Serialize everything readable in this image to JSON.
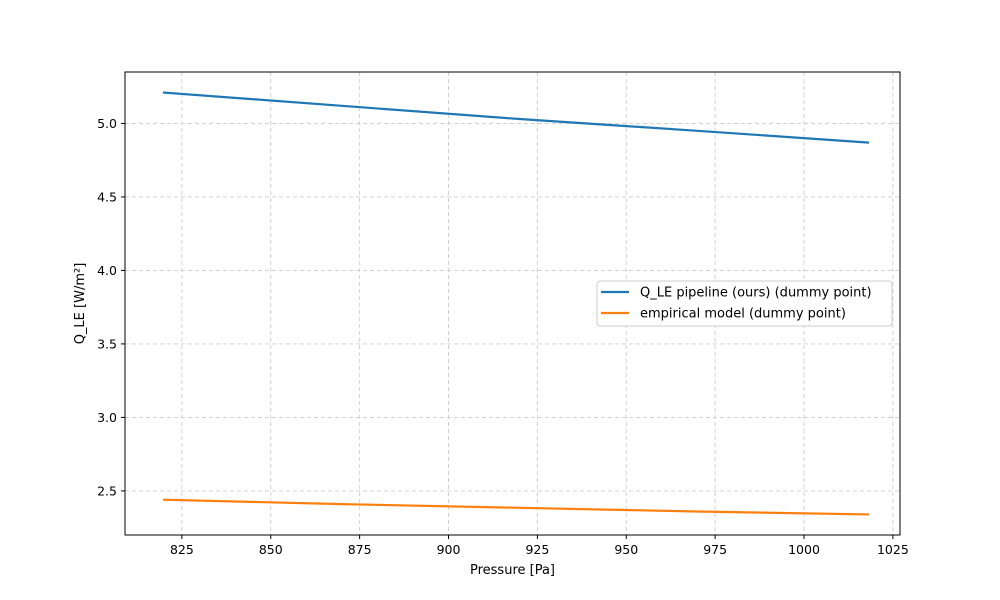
{
  "chart_data": {
    "type": "line",
    "xlabel": "Pressure [Pa]",
    "ylabel": "Q_LE [W/m²]",
    "xlim": [
      809,
      1027
    ],
    "ylim": [
      2.2,
      5.35
    ],
    "xticks": [
      825,
      850,
      875,
      900,
      925,
      950,
      975,
      1000,
      1025
    ],
    "yticks": [
      2.5,
      3.0,
      3.5,
      4.0,
      4.5,
      5.0
    ],
    "grid": true,
    "legend_position": "center-right",
    "series": [
      {
        "name": "Q_LE pipeline (ours) (dummy point)",
        "color": "#1f77b4",
        "x": [
          820,
          870,
          920,
          970,
          1018
        ],
        "y": [
          5.21,
          5.12,
          5.03,
          4.95,
          4.87
        ]
      },
      {
        "name": "empirical model (dummy point)",
        "color": "#ff7f0e",
        "x": [
          820,
          870,
          920,
          970,
          1018
        ],
        "y": [
          2.44,
          2.41,
          2.385,
          2.36,
          2.34
        ]
      }
    ]
  }
}
